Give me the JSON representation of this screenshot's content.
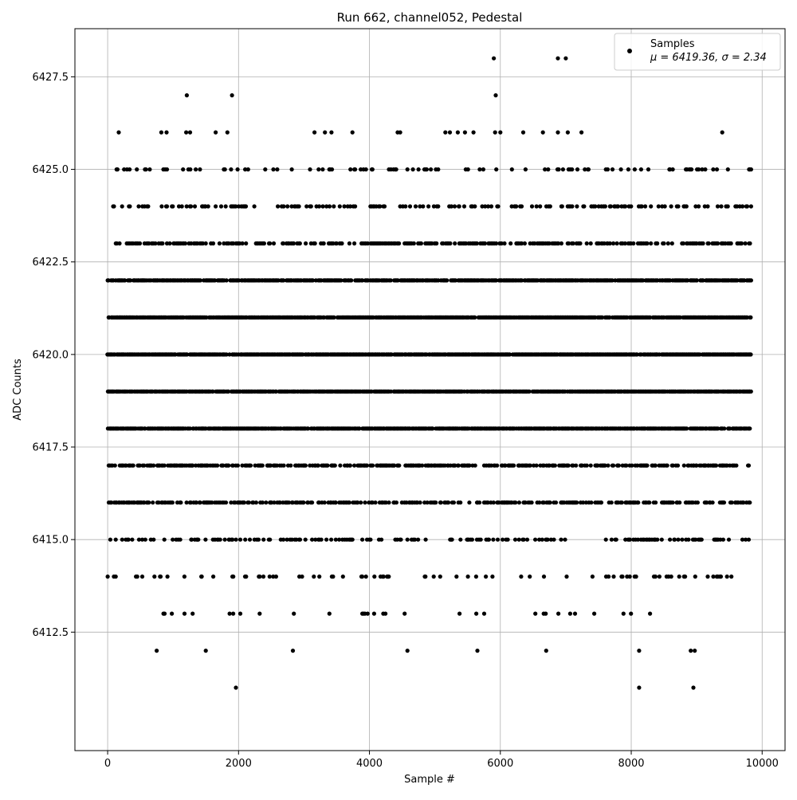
{
  "chart_data": {
    "type": "scatter",
    "title": "Run 662, channel052, Pedestal",
    "xlabel": "Sample #",
    "ylabel": "ADC Counts",
    "xlim": [
      -500,
      10350
    ],
    "ylim": [
      6409.3,
      6428.8
    ],
    "xticks": [
      0,
      2000,
      4000,
      6000,
      8000,
      10000
    ],
    "xtick_labels": [
      "0",
      "2000",
      "4000",
      "6000",
      "8000",
      "10000"
    ],
    "yticks": [
      6412.5,
      6415.0,
      6417.5,
      6420.0,
      6422.5,
      6425.0,
      6427.5
    ],
    "ytick_labels": [
      "6412.5",
      "6415.0",
      "6417.5",
      "6420.0",
      "6422.5",
      "6425.0",
      "6427.5"
    ],
    "grid": true,
    "legend": {
      "placement": "top-right",
      "entries": [
        {
          "label": "Samples",
          "sublabel": "μ = 6419.36, σ = 2.34",
          "marker": "dot",
          "color": "#000000"
        }
      ]
    },
    "series": [
      {
        "name": "Samples",
        "color": "#000000",
        "x_range": [
          0,
          9840
        ],
        "dense_rows": [
          {
            "y": 6417,
            "density": 0.55
          },
          {
            "y": 6418,
            "density": 0.82
          },
          {
            "y": 6419,
            "density": 0.85
          },
          {
            "y": 6420,
            "density": 0.88
          },
          {
            "y": 6421,
            "density": 0.85
          },
          {
            "y": 6422,
            "density": 0.75
          },
          {
            "y": 6416,
            "density": 0.45
          },
          {
            "y": 6423,
            "density": 0.42
          },
          {
            "y": 6424,
            "density": 0.22
          },
          {
            "y": 6415,
            "density": 0.25
          },
          {
            "y": 6425,
            "density": 0.14
          },
          {
            "y": 6414,
            "density": 0.1
          },
          {
            "y": 6413,
            "density": 0.04
          }
        ],
        "points": [
          [
            5900,
            6428
          ],
          [
            6880,
            6428
          ],
          [
            7000,
            6428
          ],
          [
            1210,
            6427
          ],
          [
            1900,
            6427
          ],
          [
            5930,
            6427
          ],
          [
            170,
            6426
          ],
          [
            820,
            6426
          ],
          [
            900,
            6426
          ],
          [
            1200,
            6426
          ],
          [
            1260,
            6426
          ],
          [
            1650,
            6426
          ],
          [
            1830,
            6426
          ],
          [
            3160,
            6426
          ],
          [
            3320,
            6426
          ],
          [
            3420,
            6426
          ],
          [
            3740,
            6426
          ],
          [
            4430,
            6426
          ],
          [
            4470,
            6426
          ],
          [
            5160,
            6426
          ],
          [
            5230,
            6426
          ],
          [
            5350,
            6426
          ],
          [
            5460,
            6426
          ],
          [
            5590,
            6426
          ],
          [
            5920,
            6426
          ],
          [
            6000,
            6426
          ],
          [
            6350,
            6426
          ],
          [
            6650,
            6426
          ],
          [
            6880,
            6426
          ],
          [
            7030,
            6426
          ],
          [
            7240,
            6426
          ],
          [
            9390,
            6426
          ],
          [
            750,
            6412
          ],
          [
            1500,
            6412
          ],
          [
            2830,
            6412
          ],
          [
            4580,
            6412
          ],
          [
            5650,
            6412
          ],
          [
            6700,
            6412
          ],
          [
            8120,
            6412
          ],
          [
            8910,
            6412
          ],
          [
            8970,
            6412
          ],
          [
            1960,
            6411
          ],
          [
            8120,
            6411
          ],
          [
            8950,
            6411
          ]
        ]
      }
    ]
  }
}
